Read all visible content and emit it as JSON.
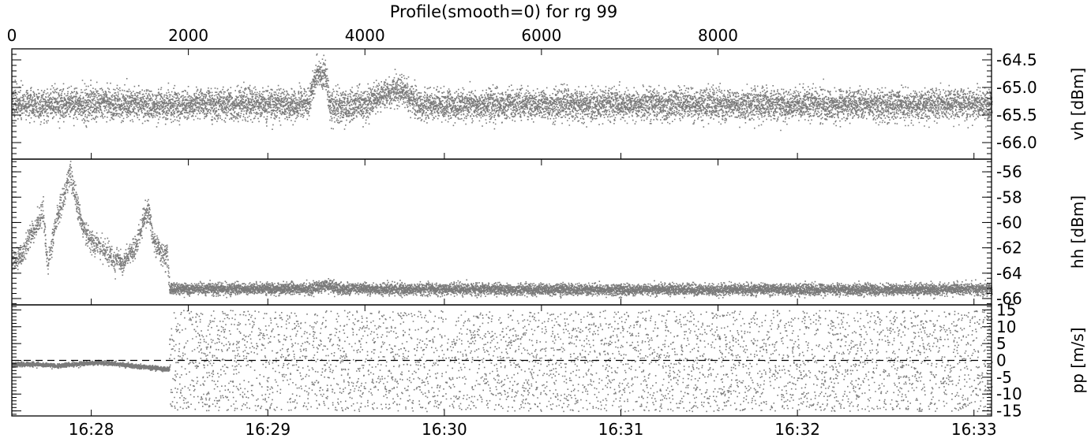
{
  "chart_data": {
    "type": "scatter",
    "title": "Profile(smooth=0) for rg 99",
    "top_axis": {
      "label": "",
      "range": [
        0,
        10000
      ],
      "tick_labels": [
        "0",
        "2000",
        "4000",
        "6000",
        "8000"
      ],
      "tick_values": [
        0,
        2000,
        4000,
        6000,
        8000
      ]
    },
    "bottom_axis": {
      "label": "",
      "tick_labels": [
        "16:28",
        "16:29",
        "16:30",
        "16:31",
        "16:32",
        "16:33"
      ],
      "tick_positions_sample_index": [
        900,
        2900,
        4900,
        6900,
        8900,
        10900
      ]
    },
    "grid": false,
    "panels": [
      {
        "name": "vh",
        "ylabel": "vh [dBm]",
        "ylim": [
          -66.3,
          -64.3
        ],
        "yticks": [
          "-64.5",
          "-65.0",
          "-65.5",
          "-66.0"
        ],
        "ytick_values": [
          -64.5,
          -65.0,
          -65.5,
          -66.0
        ],
        "zero_line": false,
        "series": [
          {
            "sample_index": [
              0,
              1000,
              2000,
              3000,
              3350,
              3450,
              3550,
              3600,
              4000,
              4250,
              4400,
              4600,
              5000,
              6000,
              7000,
              8000,
              9000,
              10000,
              11000
            ],
            "mean": [
              -65.3,
              -65.3,
              -65.3,
              -65.3,
              -65.3,
              -64.7,
              -64.8,
              -65.35,
              -65.3,
              -65.1,
              -65.0,
              -65.3,
              -65.3,
              -65.3,
              -65.3,
              -65.3,
              -65.3,
              -65.3,
              -65.3
            ],
            "spread": 0.22
          }
        ]
      },
      {
        "name": "hh",
        "ylabel": "hh [dBm]",
        "ylim": [
          -66.5,
          -55
        ],
        "yticks": [
          "-56",
          "-58",
          "-60",
          "-62",
          "-64",
          "-66"
        ],
        "ytick_values": [
          -56,
          -58,
          -60,
          -62,
          -64,
          -66
        ],
        "zero_line": false,
        "series": [
          {
            "sample_index": [
              0,
              100,
              200,
              300,
              350,
              400,
              500,
              600,
              650,
              700,
              800,
              900,
              1000,
              1100,
              1150,
              1200,
              1250,
              1300,
              1400,
              1500,
              1550,
              1600,
              1700,
              1760,
              1780,
              1850,
              2500,
              3400,
              3550,
              3700,
              4500,
              6000,
              8000,
              10000,
              11000
            ],
            "mean": [
              -63.0,
              -62.5,
              -61.0,
              -60.0,
              -59.0,
              -63.5,
              -59.5,
              -57.5,
              -56.0,
              -57.5,
              -60.5,
              -61.5,
              -62.0,
              -62.5,
              -63.0,
              -62.8,
              -63.5,
              -62.5,
              -62.0,
              -59.5,
              -59.0,
              -61.5,
              -62.5,
              -62.8,
              -65.2,
              -65.2,
              -65.2,
              -65.2,
              -64.9,
              -65.2,
              -65.2,
              -65.25,
              -65.25,
              -65.25,
              -65.2
            ],
            "spread": 0.35
          }
        ]
      },
      {
        "name": "pp",
        "ylabel": "pp [m/s]",
        "ylim": [
          -16.5,
          16.5
        ],
        "yticks": [
          "15",
          "10",
          "5",
          "0",
          "-5",
          "-10",
          "-15"
        ],
        "ytick_values": [
          15,
          10,
          5,
          0,
          -5,
          -10,
          -15
        ],
        "zero_line": true,
        "series": [
          {
            "sample_index": [
              0,
              300,
              500,
              800,
              1000,
              1200,
              1500,
              1770
            ],
            "mean": [
              -1.0,
              -1.0,
              -1.5,
              -0.8,
              -0.5,
              -1.0,
              -1.8,
              -2.5
            ],
            "spread": 0.5,
            "note_after": "uniform noise between -15 and 15 after sample 1780"
          }
        ]
      }
    ]
  }
}
